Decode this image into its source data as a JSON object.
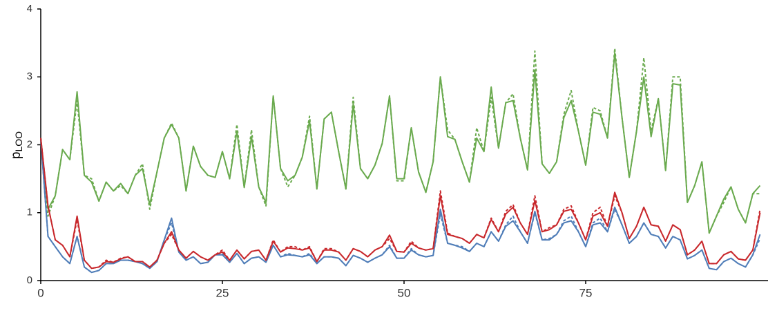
{
  "chart_data": {
    "type": "line",
    "ylabel": {
      "text": "p",
      "subscript": "LOO"
    },
    "xlim": [
      0,
      100
    ],
    "xticks": [
      0,
      25,
      50,
      75
    ],
    "ylim": [
      0,
      4
    ],
    "yticks": [
      0,
      1,
      2,
      3,
      4
    ],
    "x": [
      0,
      1,
      2,
      3,
      4,
      5,
      6,
      7,
      8,
      9,
      10,
      11,
      12,
      13,
      14,
      15,
      16,
      17,
      18,
      19,
      20,
      21,
      22,
      23,
      24,
      25,
      26,
      27,
      28,
      29,
      30,
      31,
      32,
      33,
      34,
      35,
      36,
      37,
      38,
      39,
      40,
      41,
      42,
      43,
      44,
      45,
      46,
      47,
      48,
      49,
      50,
      51,
      52,
      53,
      54,
      55,
      56,
      57,
      58,
      59,
      60,
      61,
      62,
      63,
      64,
      65,
      66,
      67,
      68,
      69,
      70,
      71,
      72,
      73,
      74,
      75,
      76,
      77,
      78,
      79,
      80,
      81,
      82,
      83,
      84,
      85,
      86,
      87,
      88,
      89,
      90,
      91,
      92,
      93,
      94,
      95,
      96,
      97,
      98,
      99
    ],
    "series": [
      {
        "color": "#6aaa4e",
        "dashed": false,
        "values": [
          2.1,
          1.05,
          1.25,
          1.93,
          1.78,
          2.78,
          1.55,
          1.45,
          1.17,
          1.45,
          1.32,
          1.43,
          1.28,
          1.55,
          1.65,
          1.12,
          1.6,
          2.1,
          2.3,
          2.1,
          1.32,
          1.98,
          1.68,
          1.55,
          1.52,
          1.9,
          1.5,
          2.2,
          1.37,
          2.12,
          1.38,
          1.15,
          2.72,
          1.65,
          1.47,
          1.55,
          1.82,
          2.35,
          1.35,
          2.38,
          2.48,
          1.9,
          1.35,
          2.6,
          1.65,
          1.5,
          1.7,
          2.02,
          2.72,
          1.5,
          1.5,
          2.25,
          1.6,
          1.3,
          1.75,
          3.0,
          2.12,
          2.08,
          1.75,
          1.45,
          2.1,
          1.9,
          2.85,
          1.95,
          2.62,
          2.65,
          2.1,
          1.63,
          3.1,
          1.72,
          1.58,
          1.75,
          2.4,
          2.65,
          2.2,
          1.7,
          2.48,
          2.45,
          2.1,
          3.35,
          2.4,
          1.52,
          2.2,
          3.0,
          2.12,
          2.68,
          1.62,
          2.9,
          2.88,
          1.15,
          1.4,
          1.75,
          0.7,
          0.95,
          1.2,
          1.38,
          1.05,
          0.85,
          1.28,
          1.4
        ]
      },
      {
        "color": "#6aaa4e",
        "dashed": true,
        "values": [
          2.1,
          0.95,
          1.25,
          1.93,
          1.78,
          2.65,
          1.55,
          1.5,
          1.17,
          1.45,
          1.32,
          1.4,
          1.28,
          1.55,
          1.72,
          1.05,
          1.6,
          2.1,
          2.32,
          2.1,
          1.32,
          1.98,
          1.68,
          1.55,
          1.52,
          1.9,
          1.5,
          2.3,
          1.37,
          2.22,
          1.38,
          1.1,
          2.72,
          1.65,
          1.38,
          1.55,
          1.82,
          2.42,
          1.35,
          2.38,
          2.48,
          1.9,
          1.35,
          2.7,
          1.65,
          1.5,
          1.7,
          2.02,
          2.72,
          1.47,
          1.47,
          2.25,
          1.6,
          1.3,
          1.75,
          3.0,
          2.22,
          2.08,
          1.75,
          1.45,
          2.25,
          1.9,
          2.7,
          1.95,
          2.62,
          2.75,
          2.1,
          1.63,
          3.38,
          1.72,
          1.58,
          1.75,
          2.45,
          2.8,
          2.2,
          1.7,
          2.55,
          2.5,
          2.1,
          3.42,
          2.4,
          1.52,
          2.2,
          3.28,
          2.2,
          2.68,
          1.62,
          3.0,
          3.0,
          1.15,
          1.4,
          1.75,
          0.7,
          0.95,
          1.15,
          1.38,
          1.05,
          0.85,
          1.28,
          1.28
        ]
      },
      {
        "color": "#4f7db8",
        "dashed": false,
        "values": [
          2.1,
          0.65,
          0.5,
          0.35,
          0.25,
          0.65,
          0.2,
          0.12,
          0.15,
          0.25,
          0.25,
          0.3,
          0.3,
          0.28,
          0.25,
          0.18,
          0.28,
          0.6,
          0.92,
          0.42,
          0.3,
          0.35,
          0.25,
          0.27,
          0.38,
          0.38,
          0.27,
          0.4,
          0.25,
          0.33,
          0.35,
          0.27,
          0.52,
          0.35,
          0.38,
          0.37,
          0.35,
          0.38,
          0.25,
          0.35,
          0.35,
          0.33,
          0.22,
          0.37,
          0.33,
          0.27,
          0.33,
          0.38,
          0.5,
          0.33,
          0.33,
          0.45,
          0.38,
          0.35,
          0.37,
          1.05,
          0.55,
          0.52,
          0.48,
          0.43,
          0.55,
          0.5,
          0.72,
          0.58,
          0.8,
          0.88,
          0.72,
          0.55,
          1.02,
          0.6,
          0.6,
          0.68,
          0.85,
          0.88,
          0.72,
          0.5,
          0.82,
          0.85,
          0.72,
          1.08,
          0.82,
          0.55,
          0.65,
          0.85,
          0.68,
          0.65,
          0.48,
          0.65,
          0.6,
          0.32,
          0.37,
          0.45,
          0.18,
          0.16,
          0.28,
          0.33,
          0.25,
          0.2,
          0.38,
          0.68
        ]
      },
      {
        "color": "#4f7db8",
        "dashed": true,
        "values": [
          2.1,
          0.65,
          0.5,
          0.35,
          0.25,
          0.65,
          0.2,
          0.12,
          0.15,
          0.25,
          0.25,
          0.3,
          0.3,
          0.28,
          0.25,
          0.18,
          0.28,
          0.6,
          0.85,
          0.42,
          0.3,
          0.35,
          0.25,
          0.27,
          0.38,
          0.4,
          0.27,
          0.4,
          0.25,
          0.33,
          0.35,
          0.27,
          0.52,
          0.35,
          0.4,
          0.37,
          0.35,
          0.4,
          0.25,
          0.35,
          0.35,
          0.33,
          0.22,
          0.37,
          0.33,
          0.27,
          0.33,
          0.38,
          0.52,
          0.33,
          0.33,
          0.47,
          0.38,
          0.35,
          0.37,
          0.98,
          0.55,
          0.52,
          0.5,
          0.43,
          0.55,
          0.5,
          0.72,
          0.58,
          0.82,
          0.95,
          0.72,
          0.55,
          1.0,
          0.6,
          0.62,
          0.68,
          0.88,
          0.95,
          0.72,
          0.5,
          0.85,
          0.92,
          0.72,
          1.05,
          0.82,
          0.55,
          0.65,
          0.85,
          0.68,
          0.65,
          0.48,
          0.65,
          0.6,
          0.32,
          0.37,
          0.45,
          0.18,
          0.16,
          0.28,
          0.33,
          0.25,
          0.2,
          0.38,
          0.62
        ]
      },
      {
        "color": "#c8282c",
        "dashed": false,
        "values": [
          2.1,
          1.1,
          0.6,
          0.52,
          0.35,
          0.95,
          0.3,
          0.18,
          0.2,
          0.28,
          0.27,
          0.32,
          0.35,
          0.28,
          0.28,
          0.2,
          0.3,
          0.55,
          0.72,
          0.45,
          0.33,
          0.43,
          0.35,
          0.3,
          0.38,
          0.42,
          0.3,
          0.45,
          0.32,
          0.43,
          0.45,
          0.3,
          0.58,
          0.42,
          0.48,
          0.47,
          0.45,
          0.48,
          0.28,
          0.45,
          0.45,
          0.42,
          0.3,
          0.47,
          0.43,
          0.35,
          0.45,
          0.5,
          0.67,
          0.43,
          0.42,
          0.55,
          0.48,
          0.45,
          0.47,
          1.25,
          0.68,
          0.65,
          0.62,
          0.55,
          0.68,
          0.63,
          0.9,
          0.72,
          0.98,
          1.08,
          0.85,
          0.68,
          1.18,
          0.72,
          0.75,
          0.82,
          1.02,
          1.05,
          0.85,
          0.6,
          0.95,
          1.0,
          0.8,
          1.3,
          1.0,
          0.62,
          0.8,
          1.08,
          0.82,
          0.8,
          0.58,
          0.82,
          0.75,
          0.38,
          0.45,
          0.58,
          0.25,
          0.25,
          0.38,
          0.43,
          0.32,
          0.3,
          0.45,
          1.0
        ]
      },
      {
        "color": "#c8282c",
        "dashed": true,
        "values": [
          2.1,
          1.1,
          0.6,
          0.52,
          0.35,
          0.9,
          0.3,
          0.18,
          0.2,
          0.3,
          0.27,
          0.33,
          0.35,
          0.28,
          0.28,
          0.2,
          0.3,
          0.55,
          0.68,
          0.45,
          0.33,
          0.43,
          0.35,
          0.3,
          0.38,
          0.45,
          0.3,
          0.45,
          0.32,
          0.43,
          0.45,
          0.3,
          0.6,
          0.42,
          0.5,
          0.5,
          0.45,
          0.5,
          0.28,
          0.47,
          0.47,
          0.42,
          0.3,
          0.47,
          0.43,
          0.35,
          0.45,
          0.5,
          0.62,
          0.43,
          0.42,
          0.58,
          0.48,
          0.45,
          0.47,
          1.32,
          0.7,
          0.65,
          0.62,
          0.55,
          0.68,
          0.63,
          0.92,
          0.72,
          1.02,
          1.12,
          0.85,
          0.68,
          1.25,
          0.72,
          0.78,
          0.82,
          1.05,
          1.1,
          0.85,
          0.6,
          1.0,
          1.08,
          0.8,
          1.25,
          1.0,
          0.62,
          0.8,
          1.08,
          0.82,
          0.8,
          0.58,
          0.82,
          0.75,
          0.38,
          0.45,
          0.58,
          0.25,
          0.25,
          0.38,
          0.43,
          0.32,
          0.3,
          0.45,
          1.05
        ]
      }
    ]
  }
}
